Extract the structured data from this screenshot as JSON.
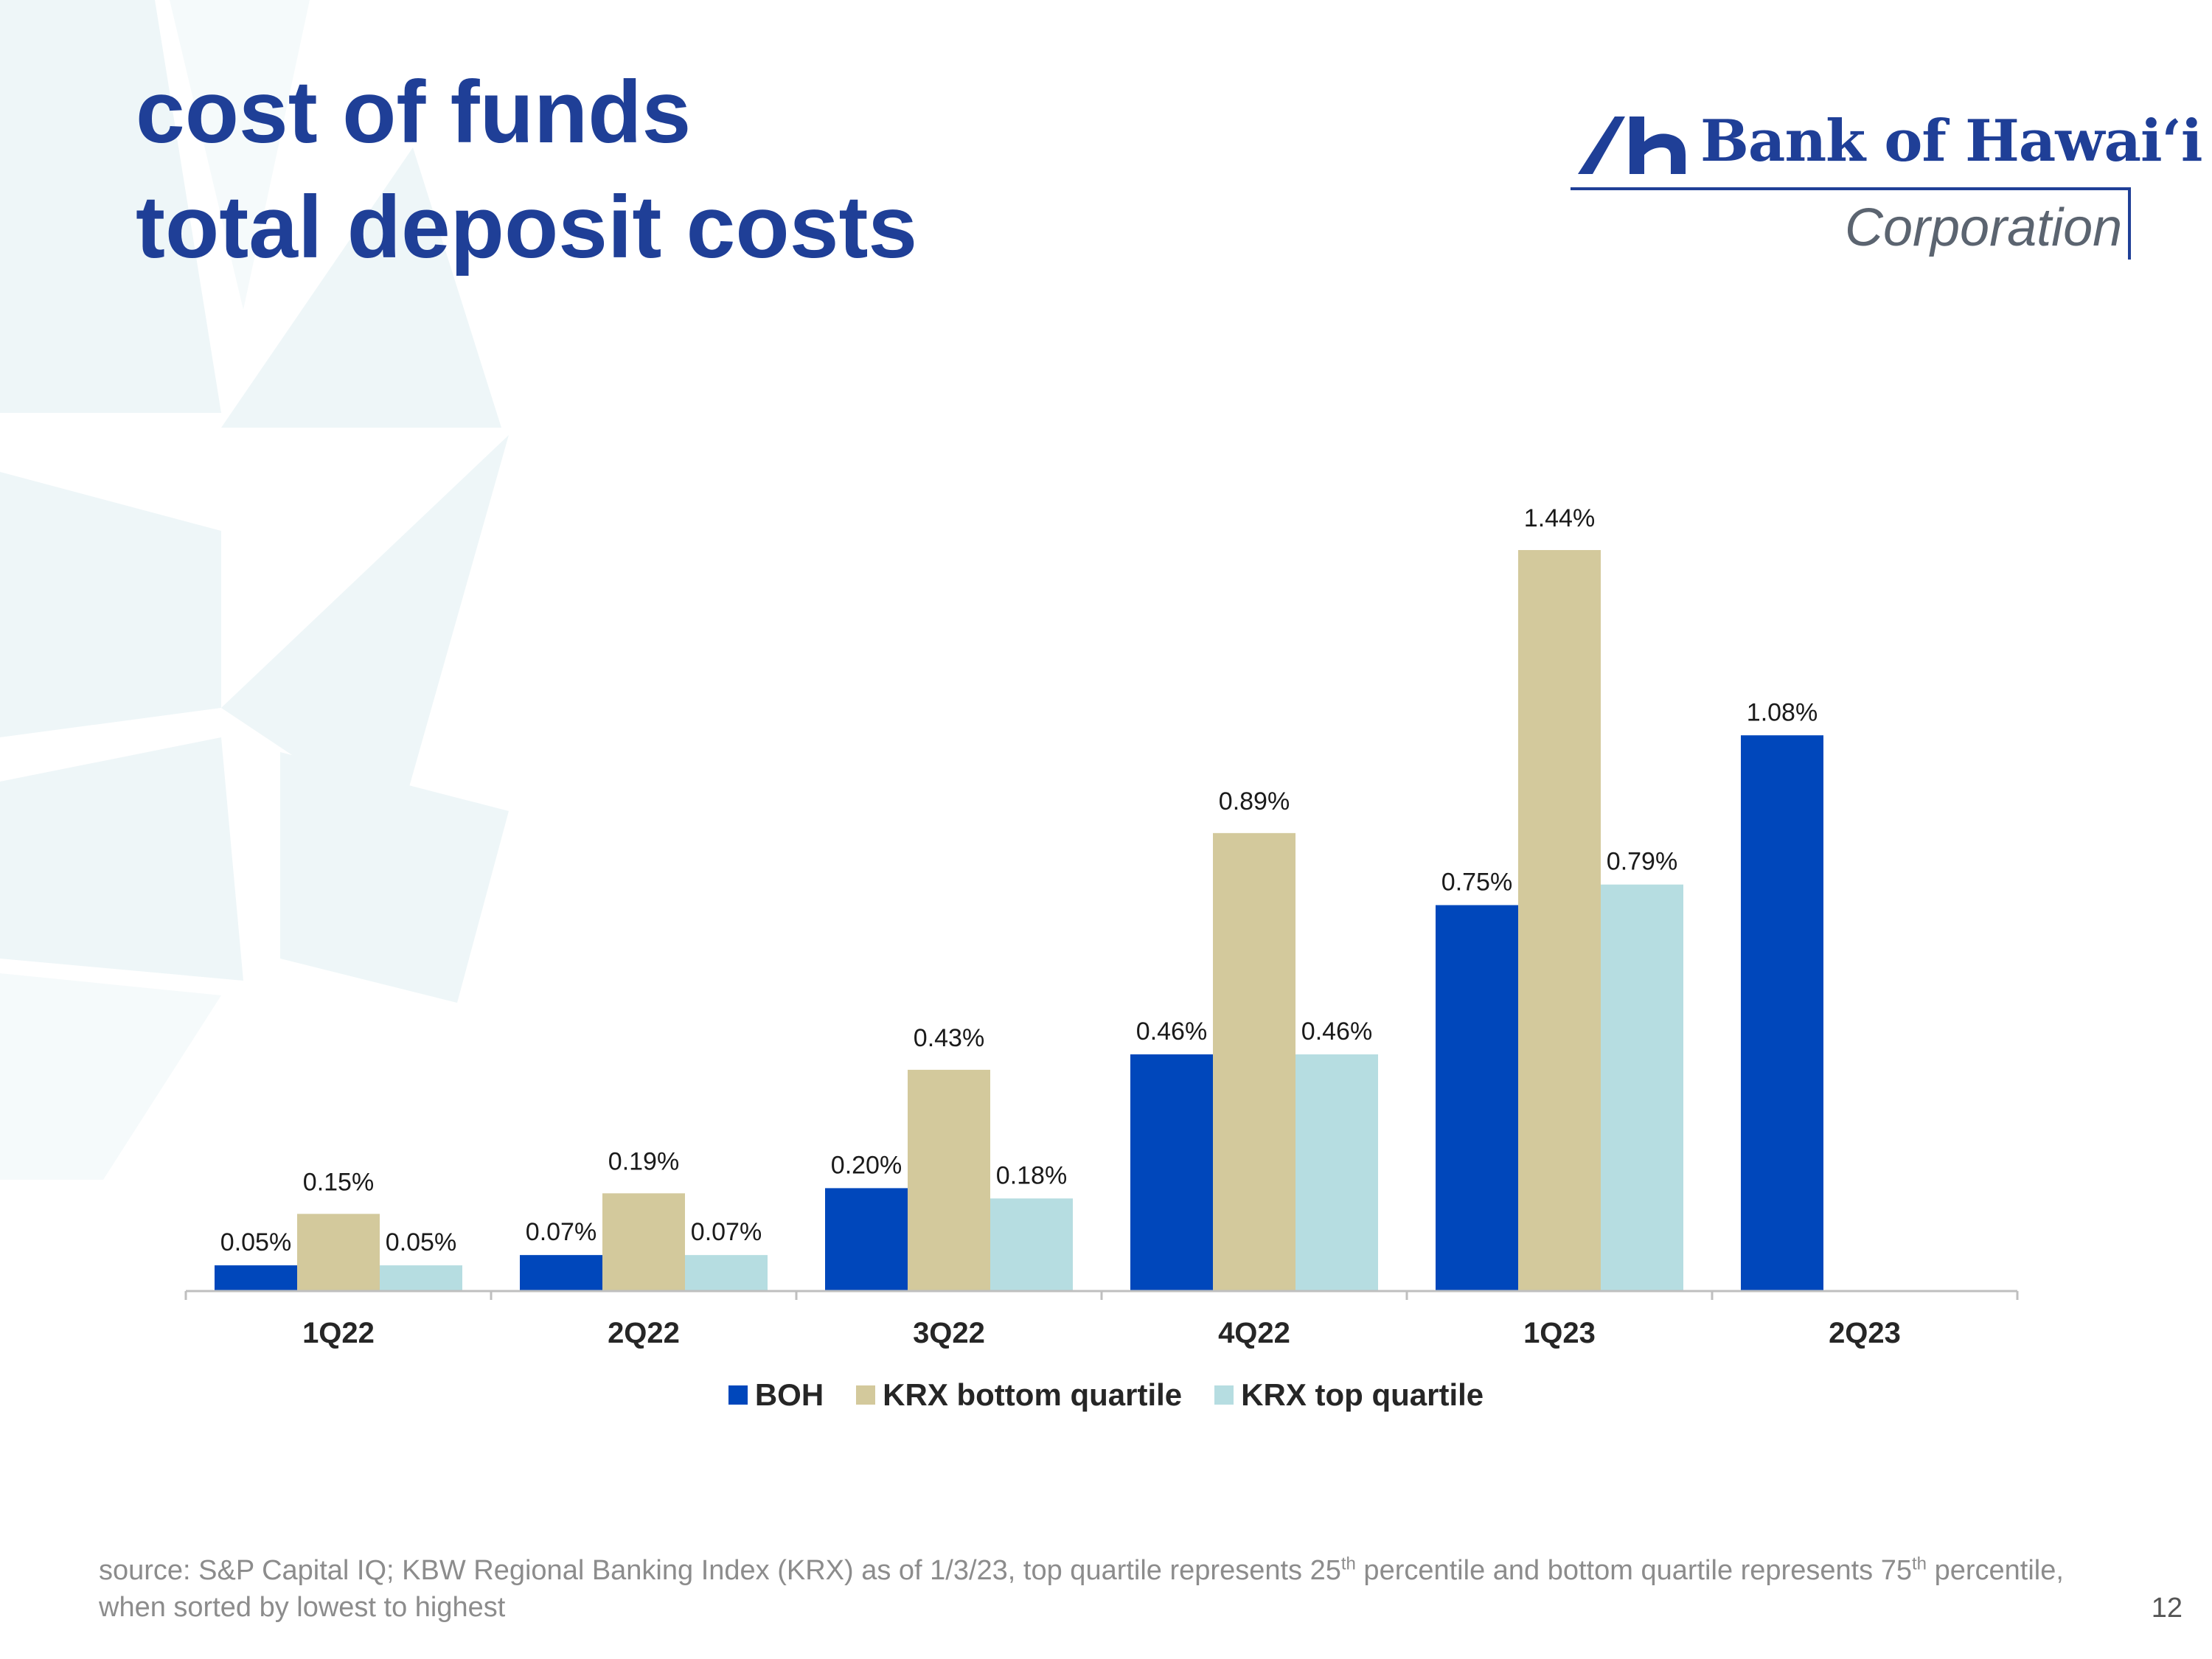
{
  "slide": {
    "title_line1": "cost of funds",
    "title_line2": "total deposit costs",
    "logo": {
      "name": "Bank of Hawaiʻi",
      "subtitle": "Corporation"
    },
    "footnote": {
      "part1": "source: S&P Capital IQ; KBW Regional Banking Index (KRX) as of 1/3/23, top quartile represents 25",
      "sup1": "th",
      "part2": " percentile and bottom quartile represents 75",
      "sup2": "th",
      "part3": " percentile, when sorted by lowest to highest"
    },
    "page_number": "12"
  },
  "colors": {
    "title": "#1f3f97",
    "boh": "#0047bb",
    "krx_bottom": "#d3c99c",
    "krx_top": "#b6dde1",
    "axis": "#bfbfbf",
    "background_star": "#eef6f8"
  },
  "chart_data": {
    "type": "bar",
    "categories": [
      "1Q22",
      "2Q22",
      "3Q22",
      "4Q22",
      "1Q23",
      "2Q23"
    ],
    "series": [
      {
        "name": "BOH",
        "color": "#0047bb",
        "values": [
          0.05,
          0.07,
          0.2,
          0.46,
          0.75,
          1.08
        ],
        "labels": [
          "0.05%",
          "0.07%",
          "0.20%",
          "0.46%",
          "0.75%",
          "1.08%"
        ]
      },
      {
        "name": "KRX bottom quartile",
        "color": "#d3c99c",
        "values": [
          0.15,
          0.19,
          0.43,
          0.89,
          1.44,
          null
        ],
        "labels": [
          "0.15%",
          "0.19%",
          "0.43%",
          "0.89%",
          "1.44%",
          ""
        ]
      },
      {
        "name": "KRX top quartile",
        "color": "#b6dde1",
        "values": [
          0.05,
          0.07,
          0.18,
          0.46,
          0.79,
          null
        ],
        "labels": [
          "0.05%",
          "0.07%",
          "0.18%",
          "0.46%",
          "0.79%",
          ""
        ]
      }
    ],
    "xlabel": "",
    "ylabel": "",
    "ylim": [
      0,
      1.44
    ],
    "grid": false,
    "legend_position": "bottom"
  }
}
